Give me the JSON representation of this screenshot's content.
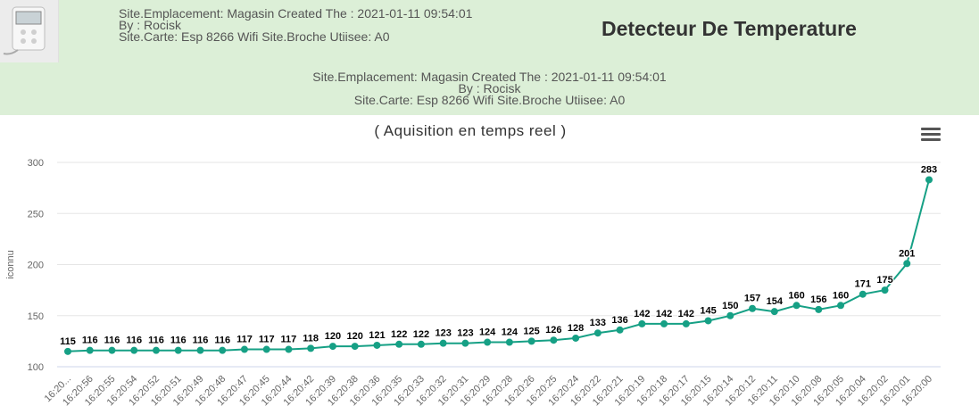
{
  "header": {
    "thumbnail_icon": "thermometer-device-icon",
    "meta_left": [
      "Site.Emplacement: Magasin Created The : 2021-01-11 09:54:01",
      "By : Rocisk",
      "Site.Carte: Esp 8266 Wifi Site.Broche Utiisee: A0"
    ],
    "title": "Detecteur De Temperature",
    "meta_center": [
      "Site.Emplacement: Magasin Created The : 2021-01-11 09:54:01",
      "By : Rocisk",
      "Site.Carte: Esp 8266 Wifi Site.Broche Utiisee: A0"
    ]
  },
  "chart_menu_icon": "hamburger-menu-icon",
  "chart_data": {
    "type": "line",
    "title": "( Aquisition en temps reel )",
    "ylabel": "iconnu",
    "xlabel": "",
    "ylim": [
      100,
      300
    ],
    "yticks": [
      100,
      150,
      200,
      250,
      300
    ],
    "grid": true,
    "color": "#16a085",
    "x_labels": [
      "16:20...",
      "16:20:56",
      "16:20:55",
      "16:20:54",
      "16:20:52",
      "16:20:51",
      "16:20:49",
      "16:20:48",
      "16:20:47",
      "16:20:45",
      "16:20:44",
      "16:20:42",
      "16:20:39",
      "16:20:38",
      "16:20:36",
      "16:20:35",
      "16:20:33",
      "16:20:32",
      "16:20:31",
      "16:20:29",
      "16:20:28",
      "16:20:26",
      "16:20:25",
      "16:20:24",
      "16:20:22",
      "16:20:21",
      "16:20:19",
      "16:20:18",
      "16:20:17",
      "16:20:15",
      "16:20:14",
      "16:20:12",
      "16:20:11",
      "16:20:10",
      "16:20:08",
      "16:20:05",
      "16:20:04",
      "16:20:02",
      "16:20:01",
      "16:20:00"
    ],
    "values": [
      115,
      116,
      116,
      116,
      116,
      116,
      116,
      116,
      117,
      117,
      117,
      118,
      120,
      120,
      121,
      122,
      122,
      123,
      123,
      124,
      124,
      125,
      126,
      128,
      133,
      136,
      142,
      142,
      142,
      145,
      150,
      157,
      154,
      160,
      156,
      160,
      171,
      175,
      201,
      283
    ]
  }
}
